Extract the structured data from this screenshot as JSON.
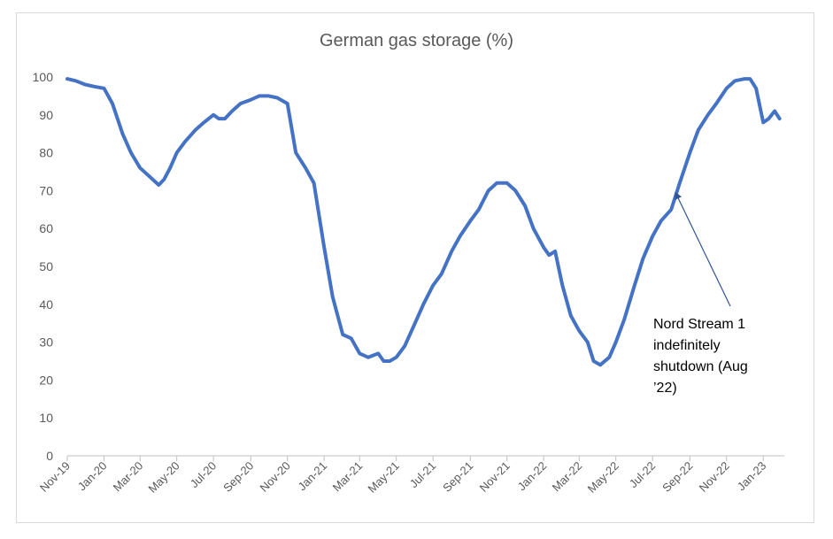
{
  "chart_data": {
    "type": "line",
    "title": "German gas storage (%)",
    "xlabel": "",
    "ylabel": "",
    "ylim": [
      0,
      100
    ],
    "yticks": [
      0,
      10,
      20,
      30,
      40,
      50,
      60,
      70,
      80,
      90,
      100
    ],
    "xticks": [
      "Nov-19",
      "Jan-20",
      "Mar-20",
      "May-20",
      "Jul-20",
      "Sep-20",
      "Nov-20",
      "Jan-21",
      "Mar-21",
      "May-21",
      "Jul-21",
      "Sep-21",
      "Nov-21",
      "Jan-22",
      "Mar-22",
      "May-22",
      "Jul-22",
      "Sep-22",
      "Nov-22",
      "Jan-23"
    ],
    "grid": false,
    "legend": "none",
    "series_color": "#4472c4",
    "series": [
      {
        "x": [
          "2019-11-01",
          "2019-11-15",
          "2019-12-01",
          "2019-12-15",
          "2020-01-01",
          "2020-01-15",
          "2020-02-01",
          "2020-02-15",
          "2020-03-01",
          "2020-03-15",
          "2020-04-01",
          "2020-04-10",
          "2020-04-20",
          "2020-05-01",
          "2020-05-15",
          "2020-06-01",
          "2020-06-15",
          "2020-07-01",
          "2020-07-10",
          "2020-07-20",
          "2020-08-01",
          "2020-08-15",
          "2020-09-01",
          "2020-09-15",
          "2020-10-01",
          "2020-10-15",
          "2020-11-01",
          "2020-11-15",
          "2020-12-01",
          "2020-12-15",
          "2021-01-01",
          "2021-01-15",
          "2021-02-01",
          "2021-02-15",
          "2021-03-01",
          "2021-03-15",
          "2021-04-01",
          "2021-04-10",
          "2021-04-20",
          "2021-05-01",
          "2021-05-15",
          "2021-06-01",
          "2021-06-15",
          "2021-07-01",
          "2021-07-15",
          "2021-08-01",
          "2021-08-15",
          "2021-09-01",
          "2021-09-15",
          "2021-10-01",
          "2021-10-15",
          "2021-11-01",
          "2021-11-15",
          "2021-12-01",
          "2021-12-15",
          "2022-01-01",
          "2022-01-10",
          "2022-01-20",
          "2022-02-01",
          "2022-02-15",
          "2022-03-01",
          "2022-03-15",
          "2022-03-25",
          "2022-04-05",
          "2022-04-20",
          "2022-05-01",
          "2022-05-15",
          "2022-06-01",
          "2022-06-15",
          "2022-07-01",
          "2022-07-15",
          "2022-08-01",
          "2022-08-15",
          "2022-09-01",
          "2022-09-15",
          "2022-10-01",
          "2022-10-15",
          "2022-11-01",
          "2022-11-15",
          "2022-12-01",
          "2022-12-10",
          "2022-12-20",
          "2023-01-01",
          "2023-01-10",
          "2023-01-20",
          "2023-01-28"
        ],
        "values": [
          99.5,
          99,
          98,
          97.5,
          97,
          93,
          85,
          80,
          76,
          74,
          71.5,
          73,
          76,
          80,
          83,
          86,
          88,
          90,
          89,
          89,
          91,
          93,
          94,
          95,
          95,
          94.5,
          93,
          80,
          76,
          72,
          55,
          42,
          32,
          31,
          27,
          26,
          27,
          25,
          25,
          26,
          29,
          35,
          40,
          45,
          48,
          54,
          58,
          62,
          65,
          70,
          72,
          72,
          70,
          66,
          60,
          55,
          53,
          54,
          45,
          37,
          33,
          30,
          25,
          24,
          26,
          30,
          36,
          45,
          52,
          58,
          62,
          65,
          72,
          80,
          86,
          90,
          93,
          97,
          99,
          99.5,
          99.5,
          97,
          88,
          89,
          91,
          89
        ]
      }
    ],
    "annotation": {
      "lines": [
        "Nord Stream 1",
        "indefinitely",
        "shutdown (Aug",
        "’22)"
      ],
      "arrow_target": {
        "x": "2022-08-05",
        "y": 70
      }
    }
  }
}
